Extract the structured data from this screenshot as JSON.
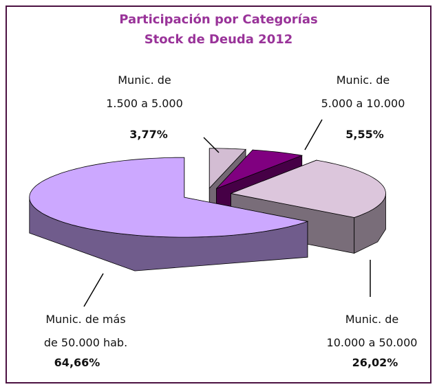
{
  "chart_data": {
    "type": "pie3d",
    "title": "Participación por Categorías",
    "subtitle": "Stock de Deuda 2012",
    "categories": [
      "Munic. de 1.500 a 5.000",
      "Munic. de 5.000 a 10.000",
      "Munic. de 10.000 a 50.000",
      "Munic. de más de 50.000 hab."
    ],
    "values": [
      3.77,
      5.55,
      26.02,
      64.66
    ],
    "value_labels": [
      "3,77%",
      "5,55%",
      "26,02%",
      "64,66%"
    ],
    "colors": [
      "#d3bdd3",
      "#800080",
      "#dcc6dc",
      "#cca8ff"
    ]
  }
}
